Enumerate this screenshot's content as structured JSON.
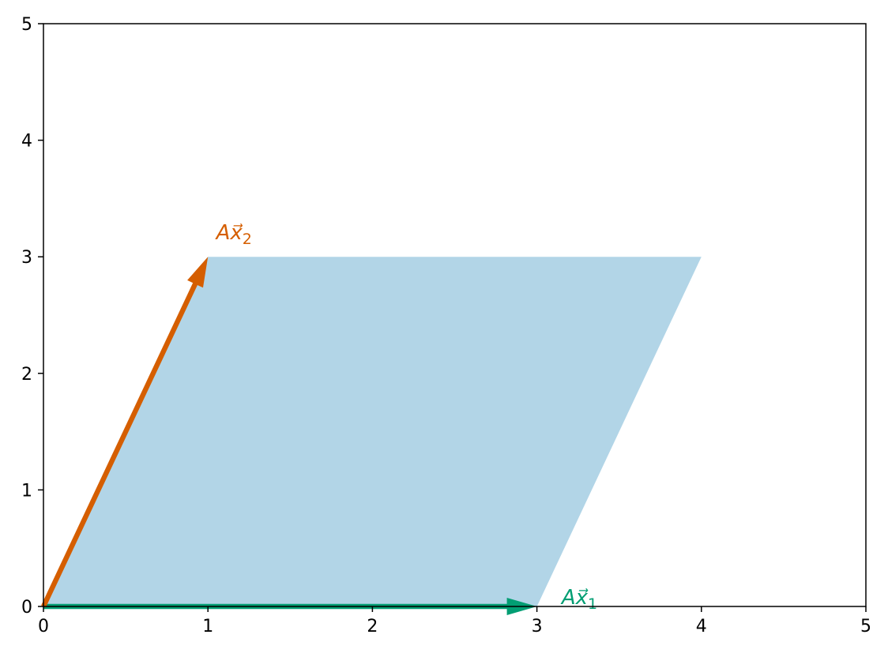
{
  "chart_data": {
    "type": "vector-plot",
    "title": "",
    "xlabel": "",
    "ylabel": "",
    "xlim": [
      0,
      5
    ],
    "ylim": [
      0,
      5
    ],
    "x_ticks": [
      "0",
      "1",
      "2",
      "3",
      "4",
      "5"
    ],
    "y_ticks": [
      "0",
      "1",
      "2",
      "3",
      "4",
      "5"
    ],
    "grid": false,
    "parallelogram": {
      "vertices": [
        [
          0,
          0
        ],
        [
          3,
          0
        ],
        [
          4,
          3
        ],
        [
          1,
          3
        ]
      ],
      "color": "#b2d5e7"
    },
    "vectors": [
      {
        "id": "v1",
        "start": [
          0,
          0
        ],
        "end": [
          3,
          0
        ],
        "color": "#029e73",
        "label_base": "A",
        "label_var": "x⃗",
        "label_sub": "1",
        "label_at": [
          3.15,
          0.02
        ]
      },
      {
        "id": "v2",
        "start": [
          0,
          0
        ],
        "end": [
          1,
          3
        ],
        "color": "#d55e00",
        "label_base": "A",
        "label_var": "x⃗",
        "label_sub": "2",
        "label_at": [
          1.05,
          3.15
        ]
      }
    ]
  }
}
